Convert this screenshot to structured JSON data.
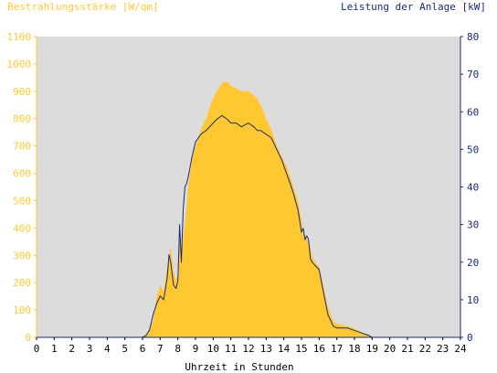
{
  "chart_data": {
    "type": "area",
    "left_axis_title": "Bestrahlungsstärke [W/qm]",
    "right_axis_title": "Leistung der Anlage [kW]",
    "xlabel": "Uhrzeit in Stunden",
    "xlim": [
      0,
      24
    ],
    "ylim_left": [
      0,
      1100
    ],
    "ylim_right": [
      0,
      80
    ],
    "x_ticks": [
      "0",
      "1",
      "2",
      "3",
      "4",
      "5",
      "6",
      "7",
      "8",
      "9",
      "10",
      "11",
      "12",
      "13",
      "14",
      "15",
      "16",
      "17",
      "18",
      "19",
      "20",
      "21",
      "22",
      "23",
      "24"
    ],
    "y_ticks_left": [
      "0",
      "100",
      "200",
      "300",
      "400",
      "500",
      "600",
      "700",
      "800",
      "900",
      "1000",
      "1100"
    ],
    "y_ticks_right": [
      "0",
      "10",
      "20",
      "30",
      "40",
      "50",
      "60",
      "70",
      "80"
    ],
    "grid": false,
    "colors": {
      "irradiance": "#ffc830",
      "power": "#1a2a7a",
      "left_axis": "#ffc830",
      "right_axis": "#1a2a7a",
      "plot_background": "#dcdcdc"
    },
    "series": [
      {
        "name": "Bestrahlungsstärke [W/qm]",
        "axis": "left",
        "kind": "area",
        "x": [
          0,
          6.0,
          6.3,
          6.6,
          6.8,
          7.0,
          7.2,
          7.4,
          7.6,
          7.75,
          7.9,
          8.0,
          8.1,
          8.2,
          8.4,
          8.6,
          8.8,
          9.0,
          9.3,
          9.6,
          9.9,
          10.2,
          10.5,
          10.8,
          11.0,
          11.3,
          11.6,
          12.0,
          12.4,
          12.7,
          13.0,
          13.3,
          13.6,
          13.9,
          14.2,
          14.5,
          14.8,
          15.0,
          15.1,
          15.3,
          15.5,
          15.6,
          15.8,
          16.0,
          16.2,
          16.5,
          16.8,
          17.0,
          17.3,
          17.6,
          17.9,
          18.2,
          18.5,
          18.8,
          19.0,
          24
        ],
        "y": [
          0,
          0,
          15,
          60,
          150,
          190,
          170,
          260,
          330,
          240,
          210,
          230,
          390,
          300,
          420,
          560,
          650,
          700,
          760,
          800,
          860,
          900,
          930,
          935,
          920,
          910,
          900,
          900,
          880,
          850,
          800,
          760,
          700,
          660,
          620,
          560,
          500,
          430,
          380,
          360,
          330,
          300,
          270,
          260,
          200,
          110,
          60,
          50,
          45,
          40,
          35,
          25,
          15,
          8,
          0,
          0
        ]
      },
      {
        "name": "Leistung der Anlage [kW]",
        "axis": "right",
        "kind": "line",
        "x": [
          0,
          6.0,
          6.2,
          6.4,
          6.6,
          6.8,
          7.0,
          7.2,
          7.4,
          7.5,
          7.6,
          7.75,
          7.9,
          8.0,
          8.1,
          8.2,
          8.3,
          8.4,
          8.5,
          8.6,
          8.8,
          9.0,
          9.3,
          9.6,
          9.8,
          10.0,
          10.2,
          10.5,
          10.8,
          11.0,
          11.3,
          11.6,
          12.0,
          12.3,
          12.5,
          12.7,
          13.0,
          13.3,
          13.6,
          13.9,
          14.2,
          14.5,
          14.8,
          15.0,
          15.1,
          15.2,
          15.3,
          15.4,
          15.5,
          15.6,
          15.8,
          16.0,
          16.2,
          16.5,
          16.8,
          17.0,
          17.3,
          17.6,
          17.9,
          18.2,
          18.5,
          18.8,
          19.0,
          24
        ],
        "y": [
          0,
          0,
          0.5,
          2,
          6,
          9,
          11,
          10,
          16,
          22,
          20,
          14,
          13,
          15,
          30,
          20,
          34,
          40,
          41,
          43,
          48,
          52,
          54,
          55,
          56,
          57,
          58,
          59,
          58,
          57,
          57,
          56,
          57,
          56,
          55,
          55,
          54,
          53,
          50,
          47,
          43,
          39,
          34,
          28,
          29,
          26,
          27,
          26,
          21,
          20,
          19,
          18,
          13,
          6,
          3,
          2.5,
          2.5,
          2.5,
          2,
          1.5,
          1,
          0.5,
          0,
          0
        ]
      }
    ]
  }
}
